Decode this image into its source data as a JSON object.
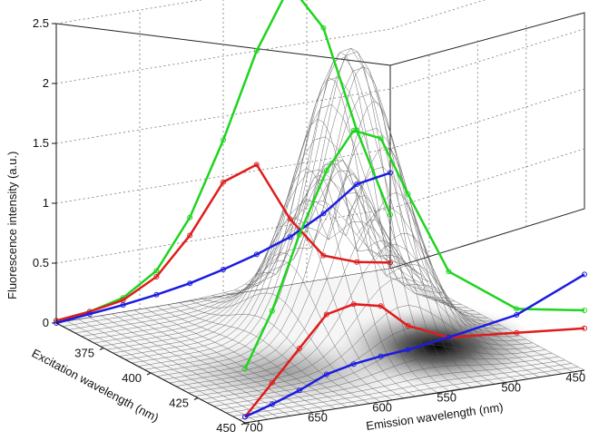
{
  "chart_data": {
    "type": "surface-3d",
    "ylabel": "Fluorescence intensity (a.u.)",
    "xlabel_excitation": "Excitation wavelength (nm)",
    "xlabel_emission": "Emission wavelength (nm)",
    "zlim": [
      0,
      2.5
    ],
    "z_ticks": [
      "0",
      "0.5",
      "1",
      "1.5",
      "2",
      "2.5"
    ],
    "excitation_ticks": [
      "375",
      "400",
      "425",
      "450"
    ],
    "emission_ticks": [
      "450",
      "500",
      "550",
      "600",
      "650",
      "700"
    ],
    "grid": true,
    "surface_peak": {
      "excitation_nm": 395,
      "emission_nm": 545,
      "intensity": 2.4
    },
    "series": [
      {
        "color": "#1fd41f",
        "x": [
          350,
          360,
          370,
          380,
          390,
          400,
          410,
          420,
          430,
          440,
          450
        ],
        "values": [
          0.02,
          0.05,
          0.12,
          0.3,
          0.7,
          1.3,
          2.0,
          2.5,
          2.1,
          1.2,
          0.45
        ]
      },
      {
        "color": "#e01c1c",
        "x": [
          350,
          360,
          370,
          380,
          390,
          400,
          410,
          420,
          430,
          440,
          450
        ],
        "values": [
          0.02,
          0.05,
          0.1,
          0.25,
          0.55,
          0.95,
          1.05,
          0.55,
          0.2,
          0.1,
          0.05
        ]
      },
      {
        "color": "#1c1ce0",
        "x": [
          350,
          360,
          370,
          380,
          390,
          400,
          410,
          420,
          430,
          440,
          450
        ],
        "values": [
          0.0,
          0.03,
          0.06,
          0.1,
          0.15,
          0.22,
          0.3,
          0.4,
          0.55,
          0.75,
          0.8
        ]
      },
      {
        "color": "#1fd41f",
        "x": [
          450,
          470,
          490,
          510,
          530,
          550,
          570,
          600,
          650,
          700
        ],
        "values": [
          0.45,
          0.9,
          1.5,
          2.0,
          2.3,
          2.2,
          1.7,
          1.0,
          0.6,
          0.5
        ]
      },
      {
        "color": "#e01c1c",
        "x": [
          450,
          470,
          490,
          510,
          530,
          550,
          570,
          600,
          650,
          700
        ],
        "values": [
          0.05,
          0.3,
          0.55,
          0.8,
          0.85,
          0.8,
          0.6,
          0.45,
          0.4,
          0.35
        ]
      },
      {
        "color": "#1c1ce0",
        "x": [
          450,
          470,
          490,
          510,
          530,
          550,
          570,
          600,
          650,
          700
        ],
        "values": [
          0.05,
          0.12,
          0.2,
          0.3,
          0.35,
          0.38,
          0.4,
          0.45,
          0.55,
          0.8
        ]
      }
    ]
  }
}
